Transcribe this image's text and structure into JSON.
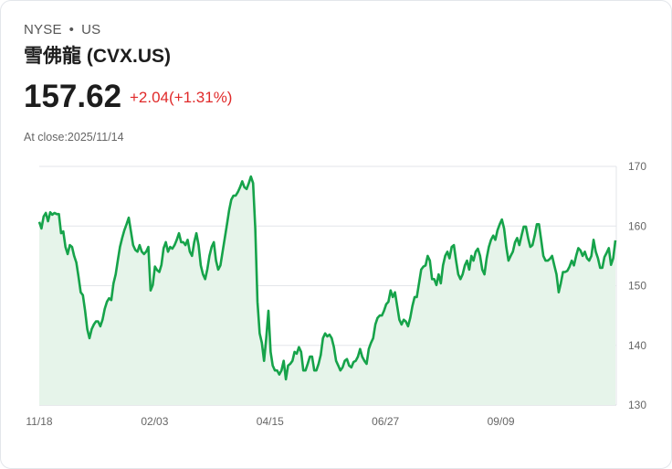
{
  "header": {
    "exchange": "NYSE",
    "separator": "•",
    "country": "US",
    "name": "雪佛龍 (CVX.US)"
  },
  "quote": {
    "price": "157.62",
    "change": "+2.04(+1.31%)",
    "close_label": "At close:2025/11/14"
  },
  "colors": {
    "line": "#16a34a",
    "fill": "#e6f4ea",
    "change": "#e02a2a"
  },
  "chart_data": {
    "type": "area",
    "title": "",
    "xlabel": "",
    "ylabel": "",
    "ylim": [
      130,
      170
    ],
    "yticks": [
      "170",
      "160",
      "150",
      "140",
      "130"
    ],
    "ytick_values": [
      170,
      160,
      150,
      140,
      130
    ],
    "xticks": [
      "11/18",
      "02/03",
      "04/15",
      "06/27",
      "09/09"
    ],
    "xtick_fractions": [
      0,
      0.2,
      0.4,
      0.6,
      0.8
    ],
    "grid": true,
    "values": [
      160.7,
      159.6,
      161.6,
      162.2,
      160.8,
      162.3,
      161.9,
      162.2,
      162.0,
      162.0,
      158.8,
      159.1,
      156.5,
      155.3,
      156.8,
      156.5,
      155.0,
      153.9,
      151.5,
      148.9,
      148.4,
      145.8,
      142.7,
      141.2,
      142.7,
      143.5,
      144.0,
      144.0,
      143.2,
      144.3,
      146.1,
      147.3,
      147.9,
      147.6,
      150.4,
      151.9,
      154.2,
      156.5,
      158.0,
      159.3,
      160.3,
      161.4,
      159.1,
      156.8,
      156.0,
      155.7,
      156.8,
      155.7,
      155.3,
      155.7,
      156.5,
      149.2,
      150.1,
      153.2,
      152.6,
      152.3,
      153.5,
      156.3,
      157.3,
      155.7,
      156.5,
      156.2,
      156.8,
      157.7,
      158.8,
      157.3,
      157.3,
      156.8,
      157.7,
      155.7,
      155.0,
      157.3,
      158.8,
      156.8,
      153.4,
      151.9,
      151.1,
      152.7,
      155.0,
      156.5,
      157.3,
      154.2,
      152.7,
      153.4,
      155.7,
      158.0,
      160.3,
      162.6,
      164.4,
      165.1,
      165.1,
      165.7,
      166.5,
      167.5,
      166.5,
      166.2,
      167.2,
      168.3,
      167.2,
      159.6,
      147.3,
      142.0,
      140.4,
      137.4,
      141.2,
      145.8,
      138.9,
      136.6,
      135.8,
      135.8,
      135.1,
      135.8,
      137.4,
      134.3,
      136.6,
      136.9,
      137.4,
      138.9,
      138.6,
      139.7,
      138.9,
      135.8,
      135.8,
      136.9,
      138.1,
      138.1,
      135.8,
      135.8,
      136.9,
      138.4,
      141.2,
      142.0,
      141.5,
      141.8,
      141.2,
      139.7,
      137.4,
      136.6,
      135.8,
      136.3,
      137.4,
      137.7,
      136.6,
      136.3,
      137.2,
      137.4,
      138.1,
      139.4,
      138.1,
      137.4,
      136.9,
      139.4,
      140.4,
      141.2,
      143.5,
      144.6,
      145.0,
      145.0,
      145.8,
      146.9,
      147.3,
      149.2,
      148.1,
      148.9,
      146.6,
      144.3,
      143.5,
      144.3,
      144.0,
      143.2,
      144.6,
      146.6,
      148.1,
      148.1,
      150.4,
      152.7,
      153.2,
      153.4,
      155.0,
      154.2,
      151.1,
      151.1,
      150.1,
      151.9,
      150.4,
      153.4,
      155.0,
      155.7,
      154.6,
      156.5,
      156.8,
      154.2,
      151.9,
      151.1,
      151.9,
      153.4,
      154.2,
      152.7,
      155.0,
      154.2,
      155.7,
      156.2,
      155.0,
      152.7,
      151.9,
      154.6,
      156.5,
      157.7,
      158.4,
      157.7,
      159.3,
      160.3,
      161.1,
      159.6,
      156.5,
      154.2,
      155.0,
      155.7,
      157.3,
      158.0,
      156.8,
      158.4,
      159.9,
      159.9,
      158.0,
      156.5,
      156.8,
      158.4,
      160.3,
      160.3,
      157.7,
      155.0,
      154.2,
      154.2,
      154.5,
      155.0,
      153.4,
      151.9,
      148.9,
      150.4,
      152.3,
      152.3,
      152.5,
      153.2,
      154.2,
      153.4,
      155.0,
      156.3,
      155.9,
      155.0,
      155.7,
      154.6,
      154.2,
      155.0,
      157.7,
      155.7,
      154.6,
      153.0,
      153.0,
      154.8,
      155.5,
      156.3,
      153.5,
      154.6,
      157.6
    ]
  }
}
